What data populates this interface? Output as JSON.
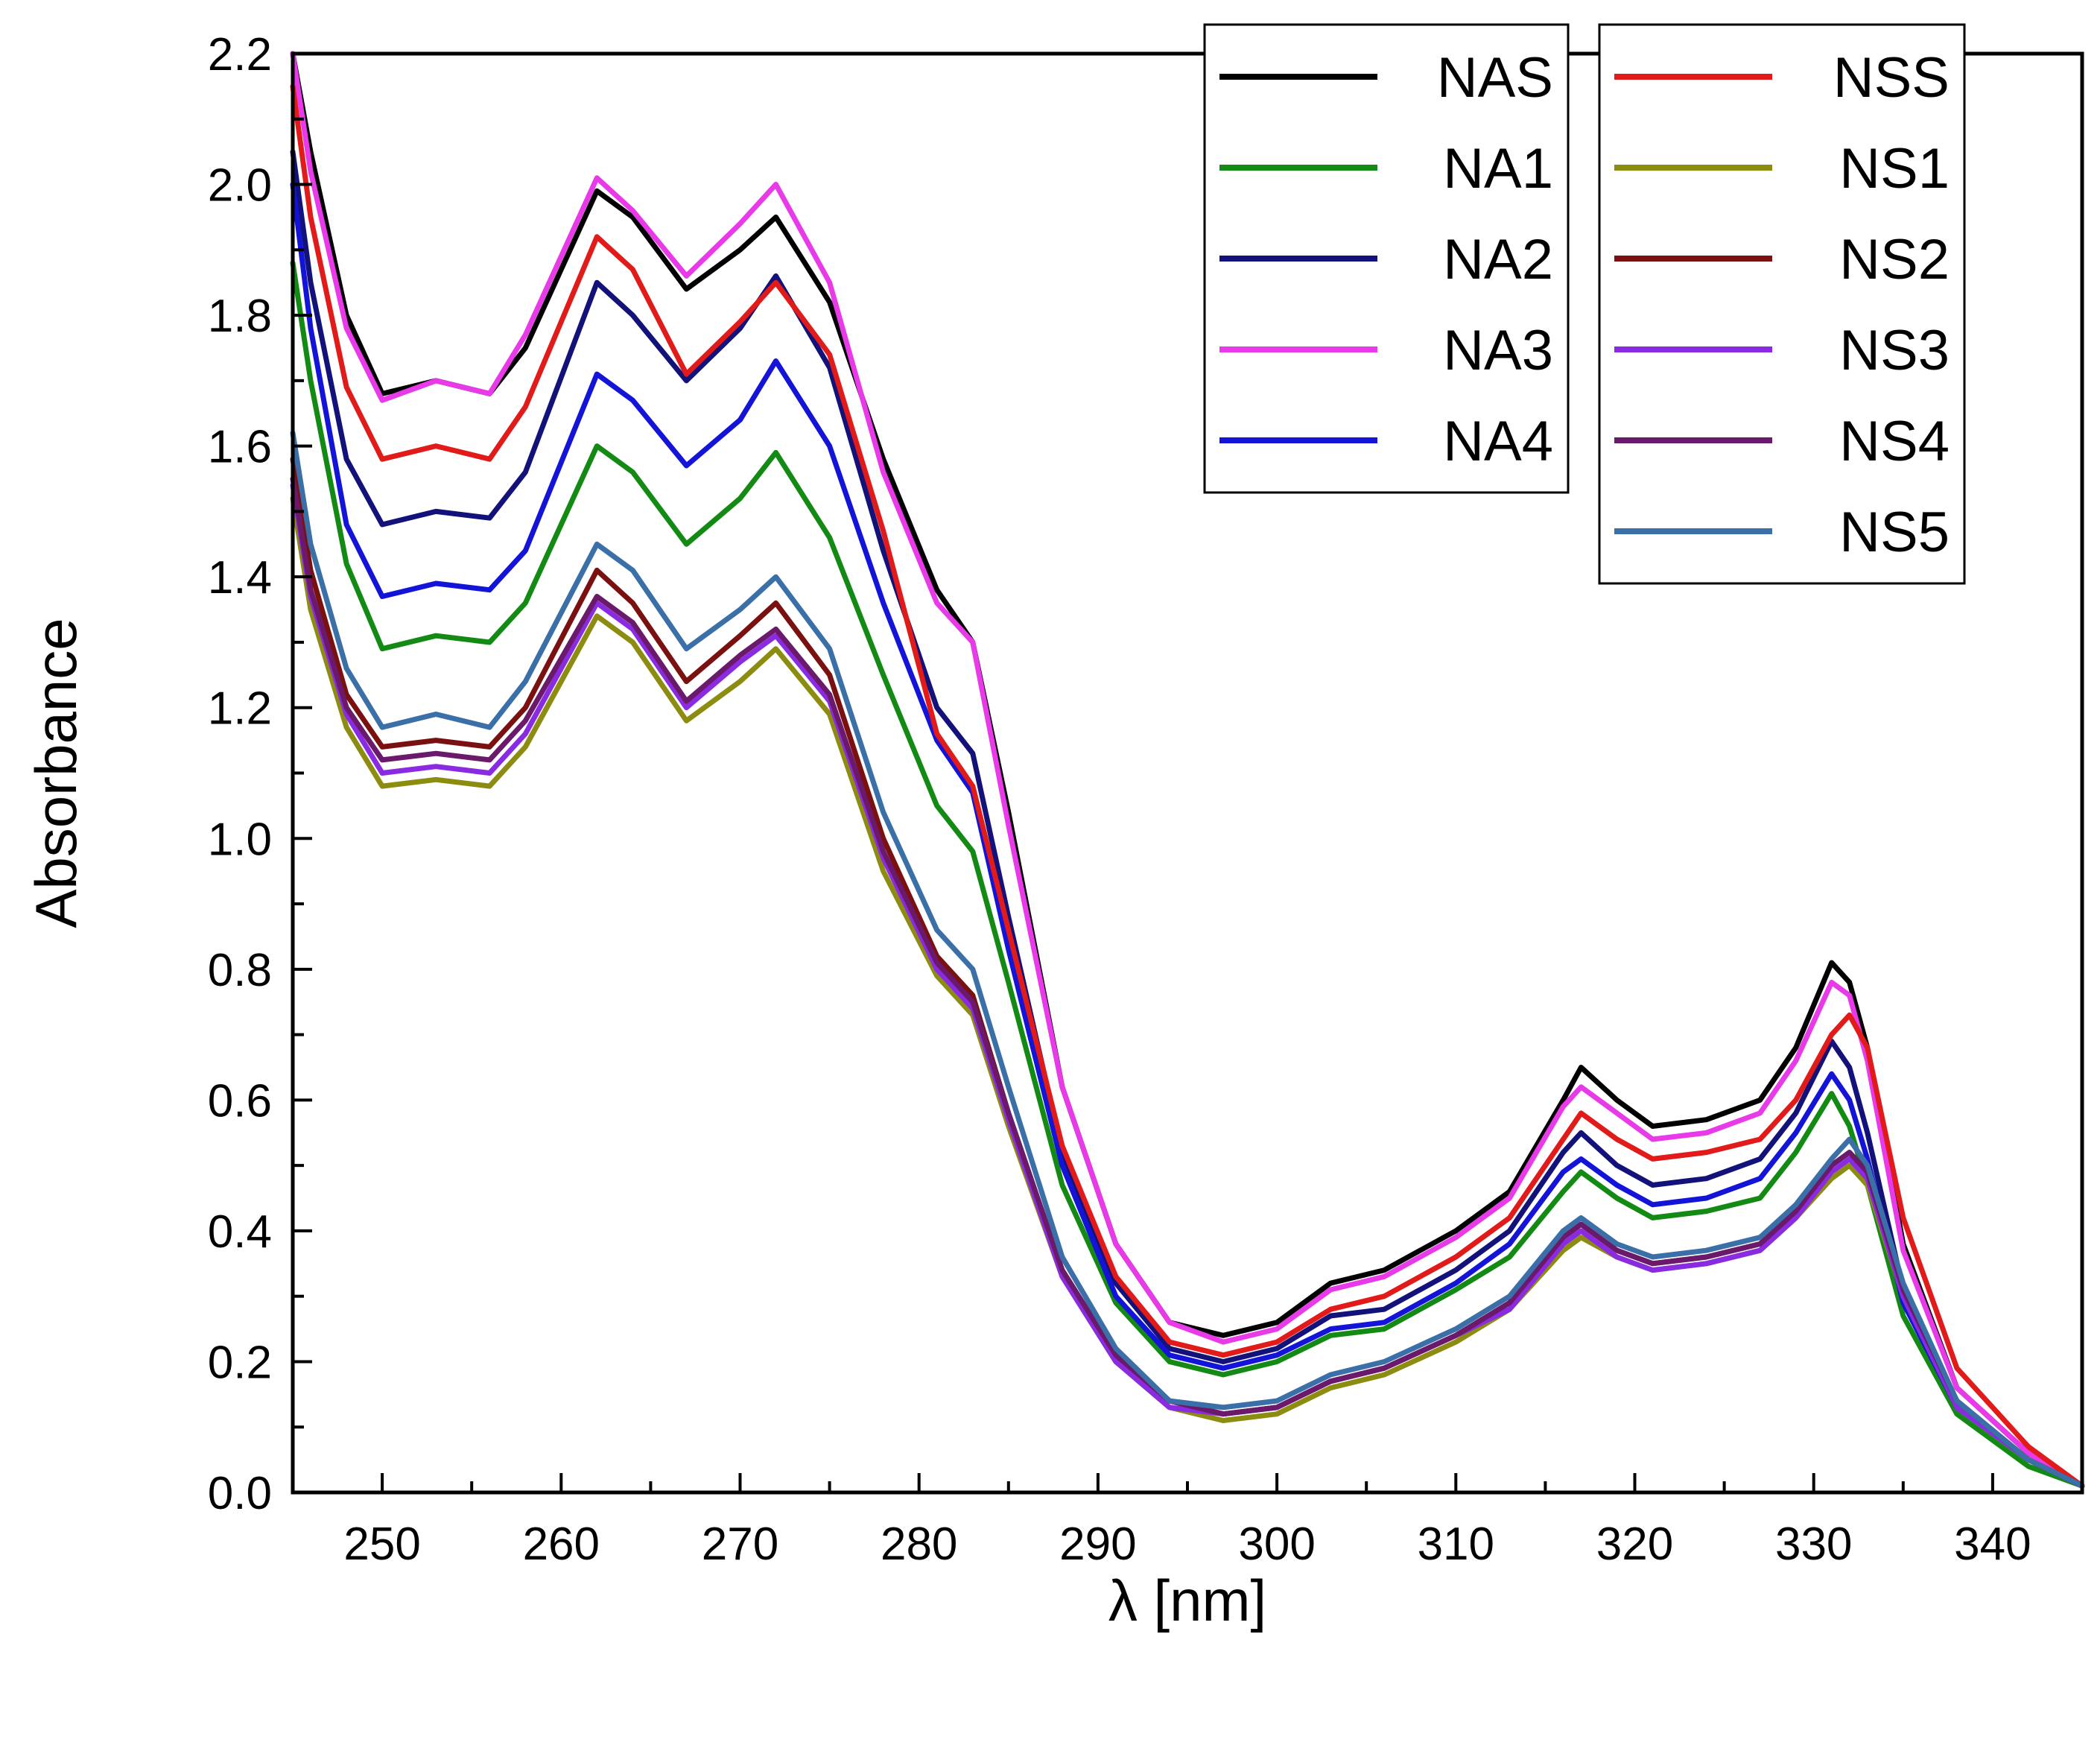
{
  "chart_data": {
    "type": "line",
    "title": "",
    "xlabel": "λ [nm]",
    "ylabel": "Absorbance",
    "xlim": [
      245,
      345
    ],
    "ylim": [
      0.0,
      2.2
    ],
    "xticks": [
      250,
      260,
      270,
      280,
      290,
      300,
      310,
      320,
      330,
      340
    ],
    "xtick_labels": [
      "250",
      "260",
      "270",
      "280",
      "290",
      "300",
      "310",
      "320",
      "330",
      "340"
    ],
    "yticks": [
      0.0,
      0.2,
      0.4,
      0.6,
      0.8,
      1.0,
      1.2,
      1.4,
      1.6,
      1.8,
      2.0,
      2.2
    ],
    "ytick_labels": [
      "0.0",
      "0.2",
      "0.4",
      "0.6",
      "0.8",
      "1.0",
      "1.2",
      "1.4",
      "1.6",
      "1.8",
      "2.0",
      "2.2"
    ],
    "grid": false,
    "legend_placement": "top-right, two columns",
    "x": [
      245,
      246,
      248,
      250,
      253,
      256,
      258,
      262,
      264,
      267,
      270,
      272,
      275,
      278,
      281,
      283,
      285,
      288,
      291,
      294,
      297,
      300,
      303,
      306,
      310,
      313,
      316,
      317,
      319,
      321,
      324,
      327,
      329,
      331,
      332,
      333,
      335,
      338,
      342,
      345
    ],
    "series": [
      {
        "name": "NAS",
        "color": "#000000",
        "values": [
          2.2,
          2.05,
          1.8,
          1.68,
          1.7,
          1.68,
          1.75,
          1.99,
          1.95,
          1.84,
          1.9,
          1.95,
          1.82,
          1.58,
          1.38,
          1.3,
          1.04,
          0.62,
          0.38,
          0.26,
          0.24,
          0.26,
          0.32,
          0.34,
          0.4,
          0.46,
          0.6,
          0.65,
          0.6,
          0.56,
          0.57,
          0.6,
          0.68,
          0.81,
          0.78,
          0.68,
          0.38,
          0.16,
          0.06,
          0.01
        ]
      },
      {
        "name": "NA1",
        "color": "#138a13",
        "values": [
          1.88,
          1.7,
          1.42,
          1.29,
          1.31,
          1.3,
          1.36,
          1.6,
          1.56,
          1.45,
          1.52,
          1.59,
          1.46,
          1.25,
          1.05,
          0.98,
          0.78,
          0.47,
          0.29,
          0.2,
          0.18,
          0.2,
          0.24,
          0.25,
          0.31,
          0.36,
          0.46,
          0.49,
          0.45,
          0.42,
          0.43,
          0.45,
          0.52,
          0.61,
          0.56,
          0.47,
          0.27,
          0.12,
          0.04,
          0.01
        ]
      },
      {
        "name": "NA2",
        "color": "#12127a",
        "values": [
          2.05,
          1.85,
          1.58,
          1.48,
          1.5,
          1.49,
          1.56,
          1.85,
          1.8,
          1.7,
          1.78,
          1.86,
          1.72,
          1.44,
          1.2,
          1.13,
          0.88,
          0.52,
          0.32,
          0.22,
          0.2,
          0.22,
          0.27,
          0.28,
          0.34,
          0.4,
          0.52,
          0.55,
          0.5,
          0.47,
          0.48,
          0.51,
          0.58,
          0.69,
          0.65,
          0.55,
          0.31,
          0.14,
          0.05,
          0.01
        ]
      },
      {
        "name": "NA3",
        "color": "#e83ae8",
        "values": [
          2.2,
          2.02,
          1.78,
          1.67,
          1.7,
          1.68,
          1.77,
          2.01,
          1.96,
          1.86,
          1.94,
          2.0,
          1.85,
          1.56,
          1.36,
          1.3,
          1.02,
          0.62,
          0.38,
          0.26,
          0.23,
          0.25,
          0.31,
          0.33,
          0.39,
          0.45,
          0.59,
          0.62,
          0.58,
          0.54,
          0.55,
          0.58,
          0.66,
          0.78,
          0.76,
          0.66,
          0.37,
          0.16,
          0.06,
          0.01
        ]
      },
      {
        "name": "NA4",
        "color": "#1414d8",
        "values": [
          2.0,
          1.78,
          1.48,
          1.37,
          1.39,
          1.38,
          1.44,
          1.71,
          1.67,
          1.57,
          1.64,
          1.73,
          1.6,
          1.36,
          1.15,
          1.07,
          0.83,
          0.5,
          0.3,
          0.21,
          0.19,
          0.21,
          0.25,
          0.26,
          0.32,
          0.38,
          0.49,
          0.51,
          0.47,
          0.44,
          0.45,
          0.48,
          0.55,
          0.64,
          0.6,
          0.51,
          0.29,
          0.13,
          0.05,
          0.01
        ]
      },
      {
        "name": "NSS",
        "color": "#e11a1a",
        "values": [
          2.15,
          1.95,
          1.69,
          1.58,
          1.6,
          1.58,
          1.66,
          1.92,
          1.87,
          1.71,
          1.79,
          1.85,
          1.74,
          1.47,
          1.16,
          1.08,
          0.86,
          0.53,
          0.33,
          0.23,
          0.21,
          0.23,
          0.28,
          0.3,
          0.36,
          0.42,
          0.54,
          0.58,
          0.54,
          0.51,
          0.52,
          0.54,
          0.6,
          0.7,
          0.73,
          0.68,
          0.42,
          0.19,
          0.07,
          0.01
        ]
      },
      {
        "name": "NS1",
        "color": "#8c8c10",
        "values": [
          1.52,
          1.35,
          1.17,
          1.08,
          1.09,
          1.08,
          1.14,
          1.34,
          1.3,
          1.18,
          1.24,
          1.29,
          1.19,
          0.95,
          0.79,
          0.73,
          0.56,
          0.33,
          0.2,
          0.13,
          0.11,
          0.12,
          0.16,
          0.18,
          0.23,
          0.28,
          0.37,
          0.39,
          0.36,
          0.34,
          0.35,
          0.37,
          0.42,
          0.48,
          0.5,
          0.47,
          0.3,
          0.13,
          0.05,
          0.01
        ]
      },
      {
        "name": "NS2",
        "color": "#7a1010",
        "values": [
          1.58,
          1.41,
          1.22,
          1.14,
          1.15,
          1.14,
          1.2,
          1.41,
          1.36,
          1.24,
          1.31,
          1.36,
          1.25,
          1.0,
          0.82,
          0.76,
          0.58,
          0.34,
          0.21,
          0.14,
          0.12,
          0.13,
          0.17,
          0.19,
          0.24,
          0.29,
          0.39,
          0.41,
          0.37,
          0.35,
          0.36,
          0.38,
          0.43,
          0.5,
          0.52,
          0.49,
          0.31,
          0.14,
          0.05,
          0.01
        ]
      },
      {
        "name": "NS3",
        "color": "#8a2be2",
        "values": [
          1.54,
          1.37,
          1.19,
          1.1,
          1.11,
          1.1,
          1.16,
          1.36,
          1.32,
          1.2,
          1.27,
          1.31,
          1.21,
          0.97,
          0.8,
          0.74,
          0.57,
          0.33,
          0.2,
          0.13,
          0.12,
          0.13,
          0.17,
          0.19,
          0.24,
          0.28,
          0.38,
          0.4,
          0.36,
          0.34,
          0.35,
          0.37,
          0.42,
          0.49,
          0.51,
          0.48,
          0.3,
          0.13,
          0.05,
          0.01
        ]
      },
      {
        "name": "NS4",
        "color": "#6b1a6b",
        "values": [
          1.55,
          1.38,
          1.2,
          1.12,
          1.13,
          1.12,
          1.18,
          1.37,
          1.33,
          1.21,
          1.28,
          1.32,
          1.22,
          0.98,
          0.81,
          0.75,
          0.58,
          0.34,
          0.21,
          0.14,
          0.12,
          0.13,
          0.17,
          0.19,
          0.24,
          0.29,
          0.39,
          0.41,
          0.37,
          0.35,
          0.36,
          0.38,
          0.43,
          0.5,
          0.52,
          0.49,
          0.31,
          0.14,
          0.05,
          0.01
        ]
      },
      {
        "name": "NS5",
        "color": "#3a6fa8",
        "values": [
          1.62,
          1.45,
          1.26,
          1.17,
          1.19,
          1.17,
          1.24,
          1.45,
          1.41,
          1.29,
          1.35,
          1.4,
          1.29,
          1.04,
          0.86,
          0.8,
          0.62,
          0.36,
          0.22,
          0.14,
          0.13,
          0.14,
          0.18,
          0.2,
          0.25,
          0.3,
          0.4,
          0.42,
          0.38,
          0.36,
          0.37,
          0.39,
          0.44,
          0.51,
          0.54,
          0.5,
          0.32,
          0.14,
          0.05,
          0.01
        ]
      }
    ],
    "legend_columns": [
      [
        "NAS",
        "NA1",
        "NA2",
        "NA3",
        "NA4"
      ],
      [
        "NSS",
        "NS1",
        "NS2",
        "NS3",
        "NS4",
        "NS5"
      ]
    ]
  }
}
